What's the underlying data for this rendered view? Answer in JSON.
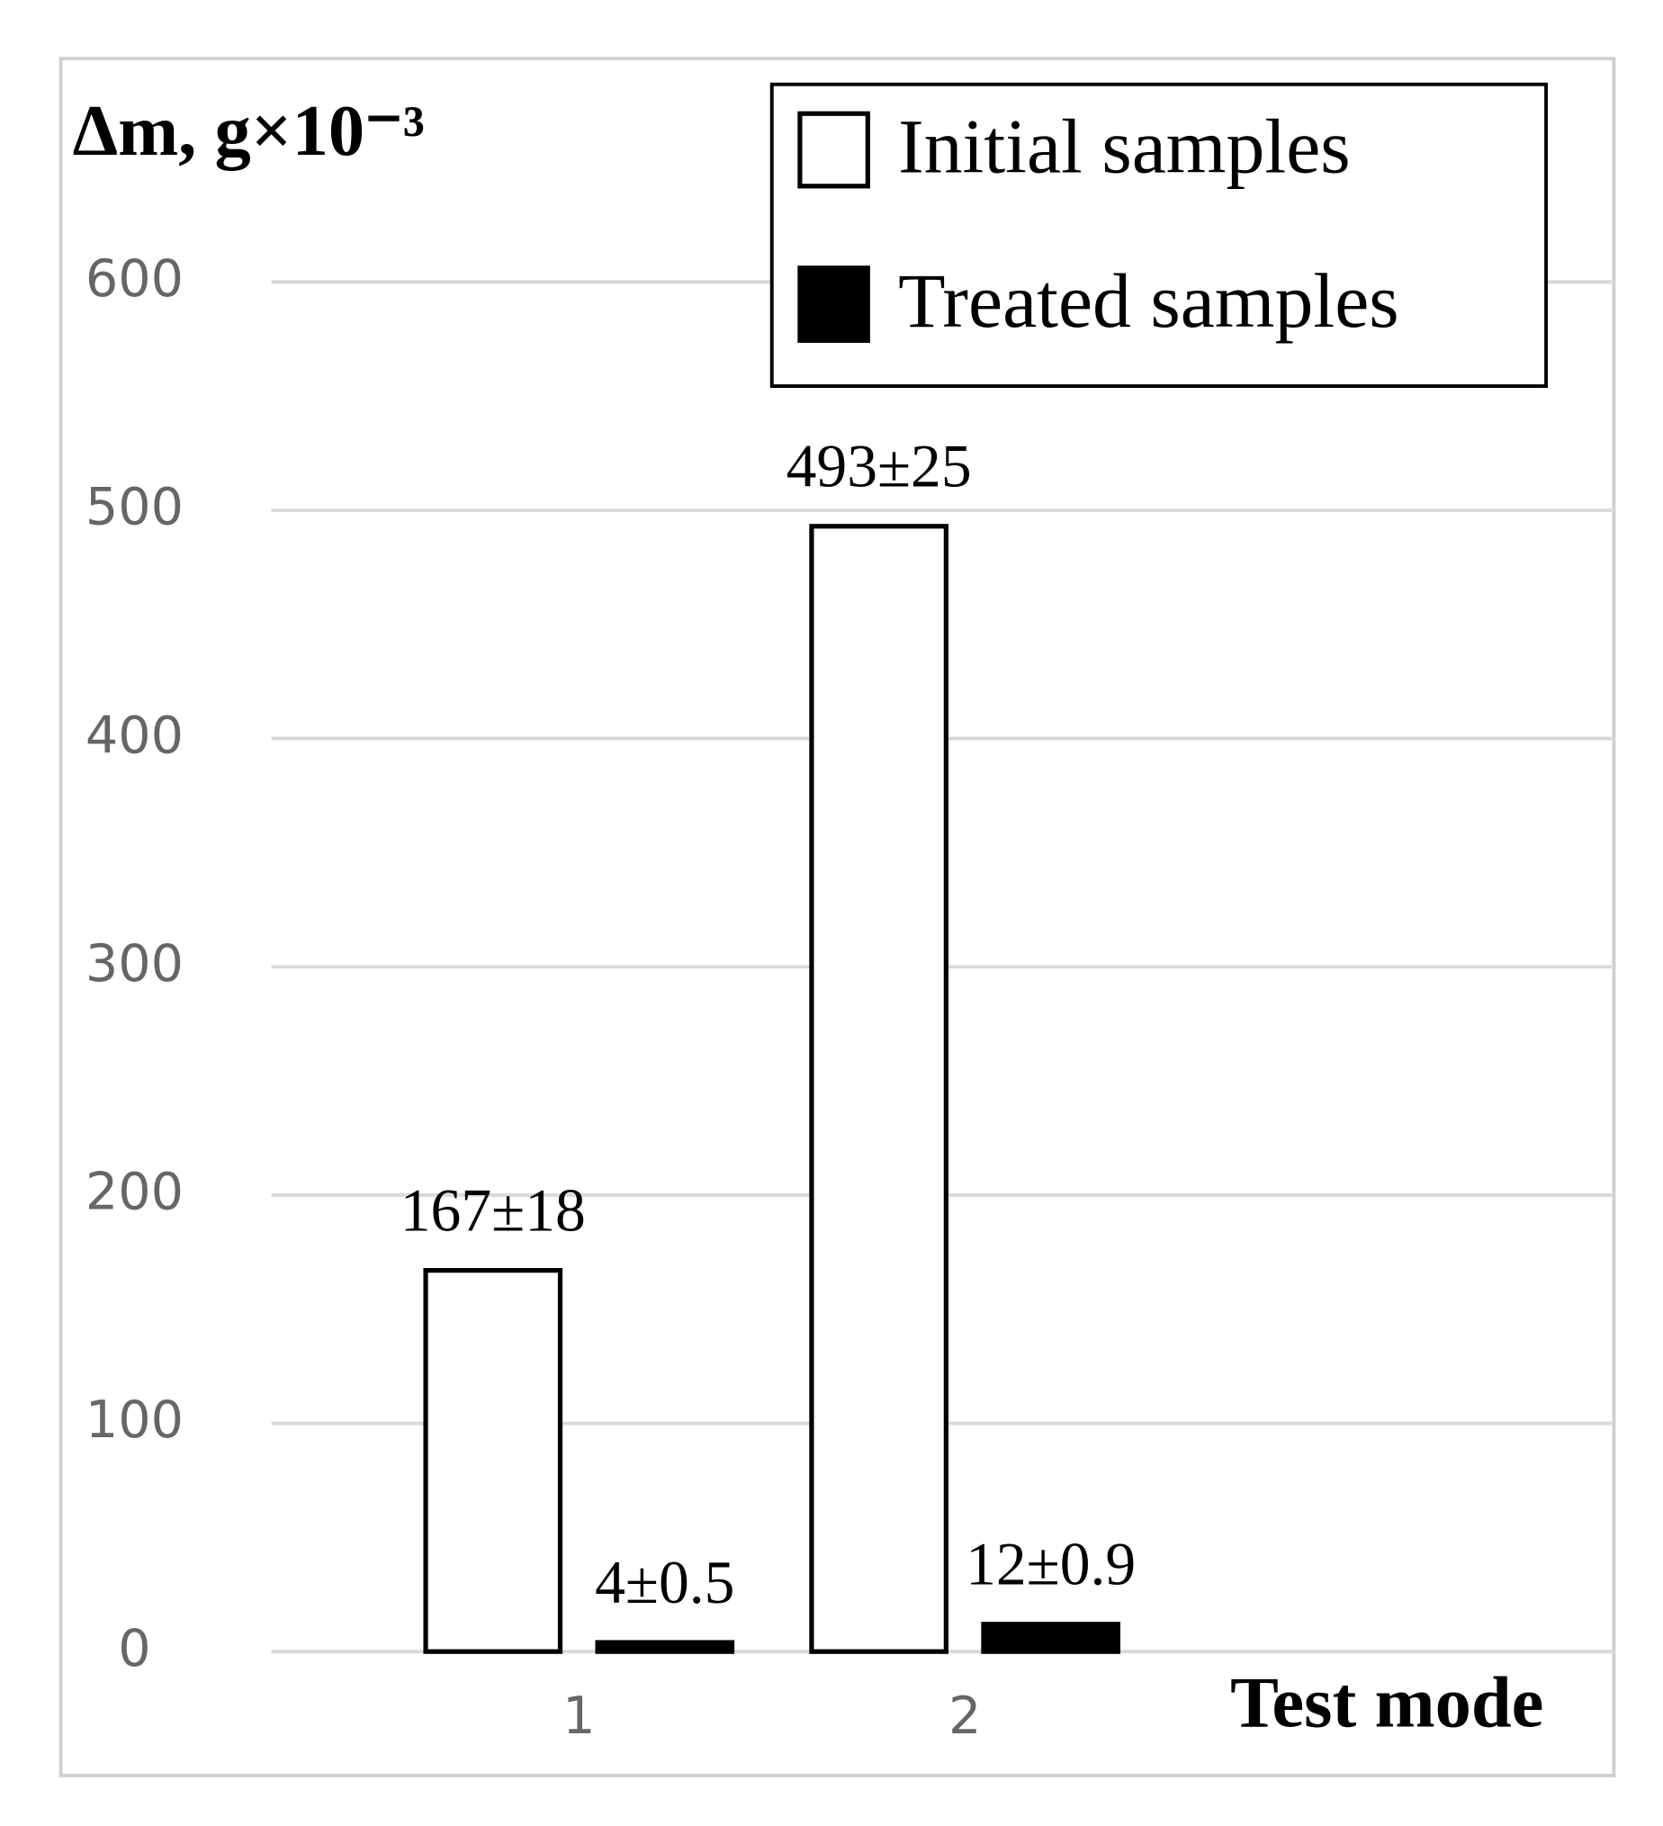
{
  "chart_data": {
    "type": "bar",
    "y_label": "Δm, g×10⁻³",
    "x_label": "Test mode",
    "categories": [
      "1",
      "2"
    ],
    "series": [
      {
        "name": "Initial samples",
        "color": "#ffffff",
        "values": [
          167,
          493
        ],
        "value_labels": [
          "167±18",
          "493±25"
        ]
      },
      {
        "name": "Treated samples",
        "color": "#000000",
        "values": [
          4,
          12
        ],
        "value_labels": [
          "4±0.5",
          "12±0.9"
        ]
      }
    ],
    "ylim": [
      0,
      600
    ],
    "yticks": [
      0,
      100,
      200,
      300,
      400,
      500,
      600
    ],
    "grid": true,
    "legend": "top-right"
  }
}
